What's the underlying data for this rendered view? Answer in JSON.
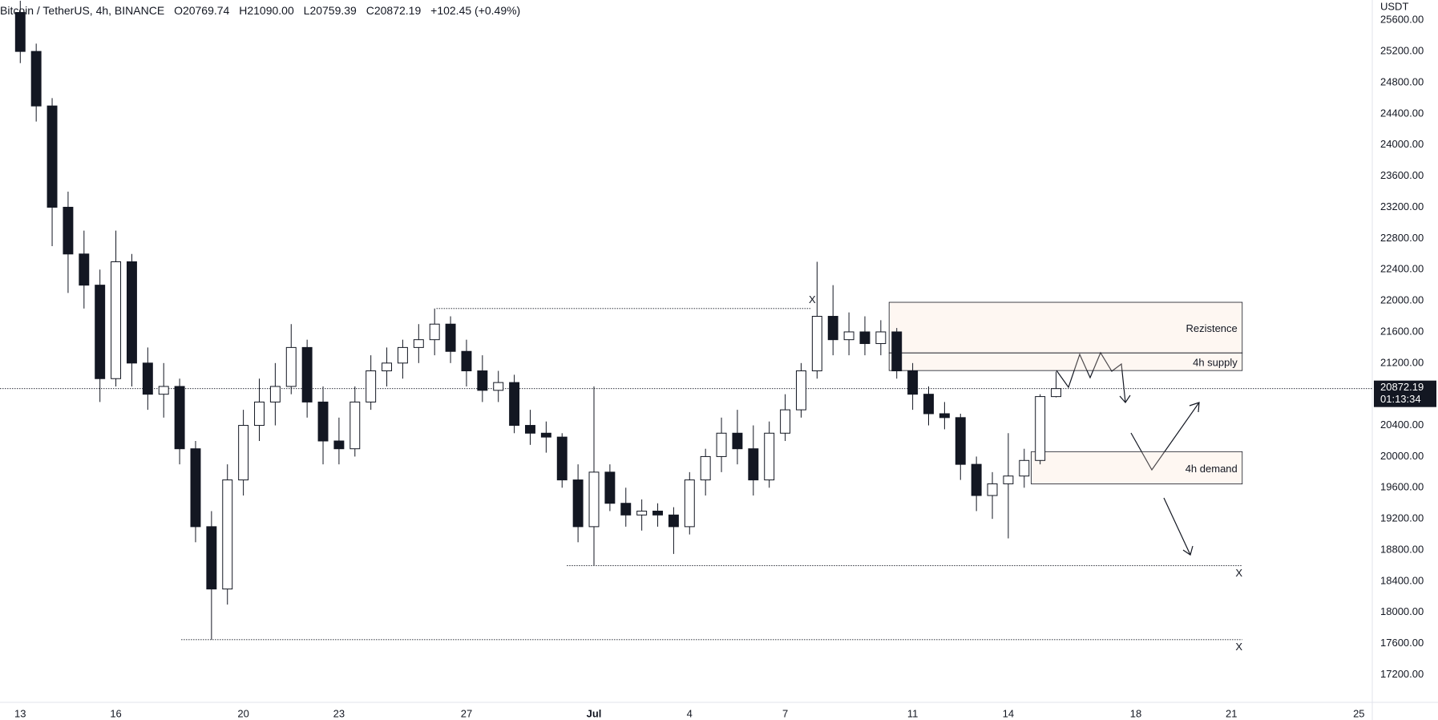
{
  "chart_data": {
    "type": "candlestick",
    "title": "Bitcoin / TetherUS, 4h, BINANCE",
    "ohlc_legend": [
      "O20769.74",
      "H21090.00",
      "L20759.39",
      "C20872.19",
      "+102.45 (+0.49%)"
    ],
    "y_axis_label": "USDT",
    "x": [
      13,
      13.5,
      14,
      14.5,
      15,
      15.5,
      16,
      16.5,
      17,
      17.5,
      18,
      18.5,
      19,
      19.5,
      20,
      20.5,
      21,
      21.5,
      22,
      22.5,
      23,
      23.5,
      24,
      24.5,
      25,
      25.5,
      26,
      26.5,
      27,
      27.5,
      28,
      28.5,
      29,
      29.5,
      30,
      30.5,
      31,
      31.5,
      32,
      32.5,
      33,
      33.5,
      34,
      34.5,
      35,
      35.5,
      36,
      36.5,
      37,
      37.5,
      38,
      38.5,
      39,
      39.5,
      40,
      40.5,
      41,
      41.5,
      42,
      42.5,
      43,
      43.5,
      44,
      44.5,
      45,
      45.5
    ],
    "open": [
      25700,
      25200,
      24500,
      23200,
      22600,
      22200,
      21000,
      22500,
      21200,
      20800,
      20900,
      20100,
      19100,
      18300,
      19700,
      20400,
      20700,
      20900,
      21400,
      20700,
      20200,
      20100,
      20700,
      21100,
      21200,
      21400,
      21500,
      21700,
      21350,
      21100,
      20850,
      20950,
      20400,
      20300,
      20250,
      19700,
      19100,
      19800,
      19400,
      19250,
      19300,
      19250,
      19100,
      19700,
      20000,
      20300,
      20100,
      19700,
      20300,
      20600,
      21100,
      21800,
      21500,
      21600,
      21450,
      21600,
      21100,
      20800,
      20550,
      20500,
      19900,
      19500,
      19650,
      19750,
      19950,
      20769.74
    ],
    "high": [
      25850,
      25300,
      24600,
      23400,
      22900,
      22400,
      22900,
      22600,
      21400,
      21200,
      21000,
      20200,
      19300,
      19900,
      20600,
      21000,
      21200,
      21700,
      21500,
      20900,
      20500,
      20900,
      21300,
      21400,
      21500,
      21700,
      21900,
      21800,
      21500,
      21300,
      21100,
      21050,
      20600,
      20450,
      20300,
      19900,
      20900,
      19900,
      19600,
      19450,
      19400,
      19350,
      19800,
      20100,
      20500,
      20600,
      20400,
      20450,
      20800,
      21200,
      22500,
      22200,
      21850,
      21800,
      21750,
      21650,
      21200,
      20900,
      20700,
      20550,
      20000,
      19800,
      20300,
      20100,
      20800,
      21090
    ],
    "low": [
      25050,
      24300,
      22700,
      22100,
      21900,
      20700,
      20900,
      20900,
      20600,
      20500,
      19900,
      18900,
      17650,
      18100,
      19500,
      20200,
      20400,
      20800,
      20500,
      19900,
      19900,
      20000,
      20600,
      20900,
      21000,
      21200,
      21300,
      21200,
      20900,
      20700,
      20700,
      20300,
      20150,
      20050,
      19600,
      18900,
      18600,
      19300,
      19100,
      19050,
      19100,
      18750,
      19000,
      19500,
      19800,
      19900,
      19500,
      19600,
      20200,
      20500,
      21000,
      21300,
      21300,
      21300,
      21300,
      21000,
      20600,
      20400,
      20350,
      19700,
      19300,
      19200,
      18950,
      19600,
      19900,
      20759.39
    ],
    "close": [
      25200,
      24500,
      23200,
      22600,
      22200,
      21000,
      22500,
      21200,
      20800,
      20900,
      20100,
      19100,
      18300,
      19700,
      20400,
      20700,
      20900,
      21400,
      20700,
      20200,
      20100,
      20700,
      21100,
      21200,
      21400,
      21500,
      21700,
      21350,
      21100,
      20850,
      20950,
      20400,
      20300,
      20250,
      19700,
      19100,
      19800,
      19400,
      19250,
      19300,
      19250,
      19100,
      19700,
      20000,
      20300,
      20100,
      19700,
      20300,
      20600,
      21100,
      21800,
      21500,
      21600,
      21450,
      21600,
      21100,
      20800,
      20550,
      20500,
      19900,
      19500,
      19650,
      19750,
      19950,
      20770,
      20872.19
    ],
    "up_color": "#ffffff",
    "down_color": "#131722",
    "xlim": [
      12.364,
      55.42
    ],
    "ylim": [
      16845,
      25860
    ],
    "xticks": [
      13,
      16,
      20,
      23,
      27,
      {
        "value": 31,
        "label": "Jul"
      },
      {
        "value": 34,
        "label": "4"
      },
      {
        "value": 37,
        "label": "7"
      },
      {
        "value": 41,
        "label": "11"
      },
      {
        "value": 44,
        "label": "14"
      },
      {
        "value": 48,
        "label": "18"
      },
      {
        "value": 51,
        "label": "21"
      },
      {
        "value": 55,
        "label": "25"
      }
    ],
    "yticks": [
      {
        "value": 17200,
        "label": "17200.00"
      },
      {
        "value": 17600,
        "label": "17600.00"
      },
      {
        "value": 18000,
        "label": "18000.00"
      },
      {
        "value": 18400,
        "label": "18400.00"
      },
      {
        "value": 18800,
        "label": "18800.00"
      },
      {
        "value": 19200,
        "label": "19200.00"
      },
      {
        "value": 19600,
        "label": "19600.00"
      },
      {
        "value": 20000,
        "label": "20000.00"
      },
      {
        "value": 20400,
        "label": "20400.00"
      },
      {
        "value": 20800,
        "label": "20800.00"
      },
      {
        "value": 21200,
        "label": "21200.00"
      },
      {
        "value": 21600,
        "label": "21600.00"
      },
      {
        "value": 22000,
        "label": "22000.00"
      },
      {
        "value": 22400,
        "label": "22400.00"
      },
      {
        "value": 22800,
        "label": "22800.00"
      },
      {
        "value": 23200,
        "label": "23200.00"
      },
      {
        "value": 23600,
        "label": "23600.00"
      },
      {
        "value": 24000,
        "label": "24000.00"
      },
      {
        "value": 24400,
        "label": "24400.00"
      },
      {
        "value": 24800,
        "label": "24800.00"
      },
      {
        "value": 25200,
        "label": "25200.00"
      },
      {
        "value": 25600,
        "label": "25600.00"
      }
    ],
    "last_price": 20872.19,
    "countdown": "01:13:34",
    "levels": [
      {
        "y": 21900,
        "x": [
          26.06,
          37.8
        ],
        "label": "X"
      },
      {
        "y": 18600,
        "x": [
          30.15,
          51.34
        ],
        "label": "X"
      },
      {
        "y": 17650,
        "x": [
          18.05,
          51.34
        ],
        "label": "X"
      }
    ],
    "zones": [
      {
        "label": "Rezistence",
        "x": [
          40.26,
          51.34
        ],
        "y": [
          21330,
          21980
        ]
      },
      {
        "label": "4h supply",
        "x": [
          40.26,
          51.34
        ],
        "y": [
          21104,
          21330
        ]
      },
      {
        "label": "4h demand",
        "x": [
          44.72,
          51.34
        ],
        "y": [
          19648,
          20063
        ]
      }
    ],
    "grid": false
  }
}
